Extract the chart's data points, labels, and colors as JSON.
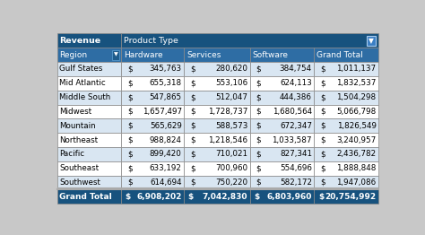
{
  "header1_left": "Revenue",
  "header1_right": "Product Type",
  "header2": [
    "Region",
    "Hardware",
    "Services",
    "Software",
    "Grand Total"
  ],
  "rows": [
    [
      "Gulf States",
      "345,763",
      "280,620",
      "384,754",
      "1,011,137"
    ],
    [
      "Mid Atlantic",
      "655,318",
      "553,106",
      "624,113",
      "1,832,537"
    ],
    [
      "Middle South",
      "547,865",
      "512,047",
      "444,386",
      "1,504,298"
    ],
    [
      "Midwest",
      "1,657,497",
      "1,728,737",
      "1,680,564",
      "5,066,798"
    ],
    [
      "Mountain",
      "565,629",
      "588,573",
      "672,347",
      "1,826,549"
    ],
    [
      "Northeast",
      "988,824",
      "1,218,546",
      "1,033,587",
      "3,240,957"
    ],
    [
      "Pacific",
      "899,420",
      "710,021",
      "827,341",
      "2,436,782"
    ],
    [
      "Southeast",
      "633,192",
      "700,960",
      "554,696",
      "1,888,848"
    ],
    [
      "Southwest",
      "614,694",
      "750,220",
      "582,172",
      "1,947,086"
    ]
  ],
  "footer": [
    "Grand Total",
    "6,908,202",
    "7,042,830",
    "6,803,960",
    "20,754,992"
  ],
  "footer_dollar": [
    "",
    "$",
    "$",
    "$",
    "$"
  ],
  "header_bg": "#17527E",
  "header2_bg": "#2E6DA4",
  "row_bg_even": "#FFFFFF",
  "row_bg_odd": "#D9E6F2",
  "footer_bg": "#17527E",
  "header_text_color": "#FFFFFF",
  "cell_text_color": "#000000",
  "footer_text_color": "#FFFFFF",
  "outer_bg": "#C8C8C8",
  "border_color": "#AAAAAA",
  "figsize": [
    4.74,
    2.62
  ],
  "dpi": 100
}
